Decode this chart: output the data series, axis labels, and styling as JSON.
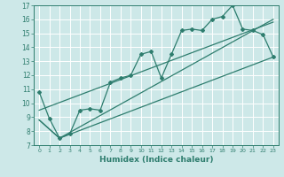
{
  "xlabel": "Humidex (Indice chaleur)",
  "bg_color": "#cde8e8",
  "grid_color": "#b0d8d8",
  "line_color": "#2e7d6e",
  "xlim": [
    -0.5,
    23.5
  ],
  "ylim": [
    7,
    17
  ],
  "xticks": [
    0,
    1,
    2,
    3,
    4,
    5,
    6,
    7,
    8,
    9,
    10,
    11,
    12,
    13,
    14,
    15,
    16,
    17,
    18,
    19,
    20,
    21,
    22,
    23
  ],
  "yticks": [
    7,
    8,
    9,
    10,
    11,
    12,
    13,
    14,
    15,
    16,
    17
  ],
  "series1_x": [
    0,
    1,
    2,
    3,
    4,
    5,
    6,
    7,
    8,
    9,
    10,
    11,
    12,
    13,
    14,
    15,
    16,
    17,
    18,
    19,
    20,
    21,
    22,
    23
  ],
  "series1_y": [
    10.8,
    8.9,
    7.5,
    7.8,
    9.5,
    9.6,
    9.5,
    11.5,
    11.8,
    12.0,
    13.5,
    13.7,
    11.8,
    13.5,
    15.2,
    15.3,
    15.2,
    16.0,
    16.2,
    17.0,
    15.3,
    15.2,
    14.9,
    13.3
  ],
  "series2_x": [
    0,
    2,
    23
  ],
  "series2_y": [
    8.8,
    7.5,
    13.3
  ],
  "series3_x": [
    0,
    2,
    23
  ],
  "series3_y": [
    8.8,
    7.5,
    16.0
  ],
  "series4_x": [
    0,
    23
  ],
  "series4_y": [
    9.5,
    15.8
  ]
}
